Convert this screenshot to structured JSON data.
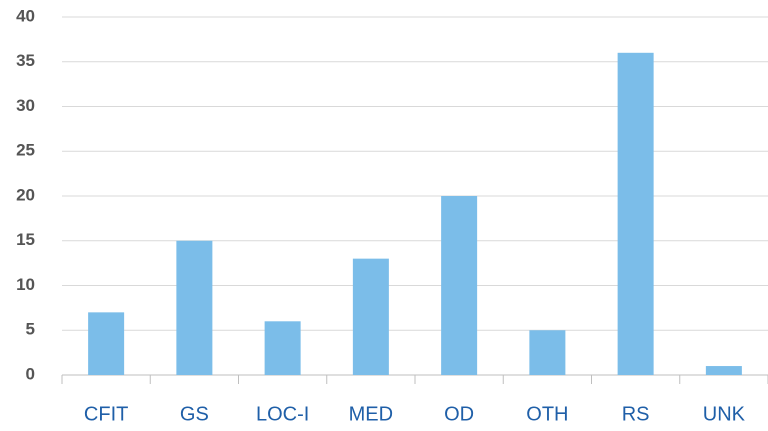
{
  "chart_data": {
    "type": "bar",
    "categories": [
      "CFIT",
      "GS",
      "LOC-I",
      "MED",
      "OD",
      "OTH",
      "RS",
      "UNK"
    ],
    "values": [
      7,
      15,
      6,
      13,
      20,
      5,
      36,
      1
    ],
    "color": "#7bbde9",
    "ylim": [
      0,
      40
    ],
    "yticks": [
      0,
      5,
      10,
      15,
      20,
      25,
      30,
      35,
      40
    ],
    "grid": true
  }
}
